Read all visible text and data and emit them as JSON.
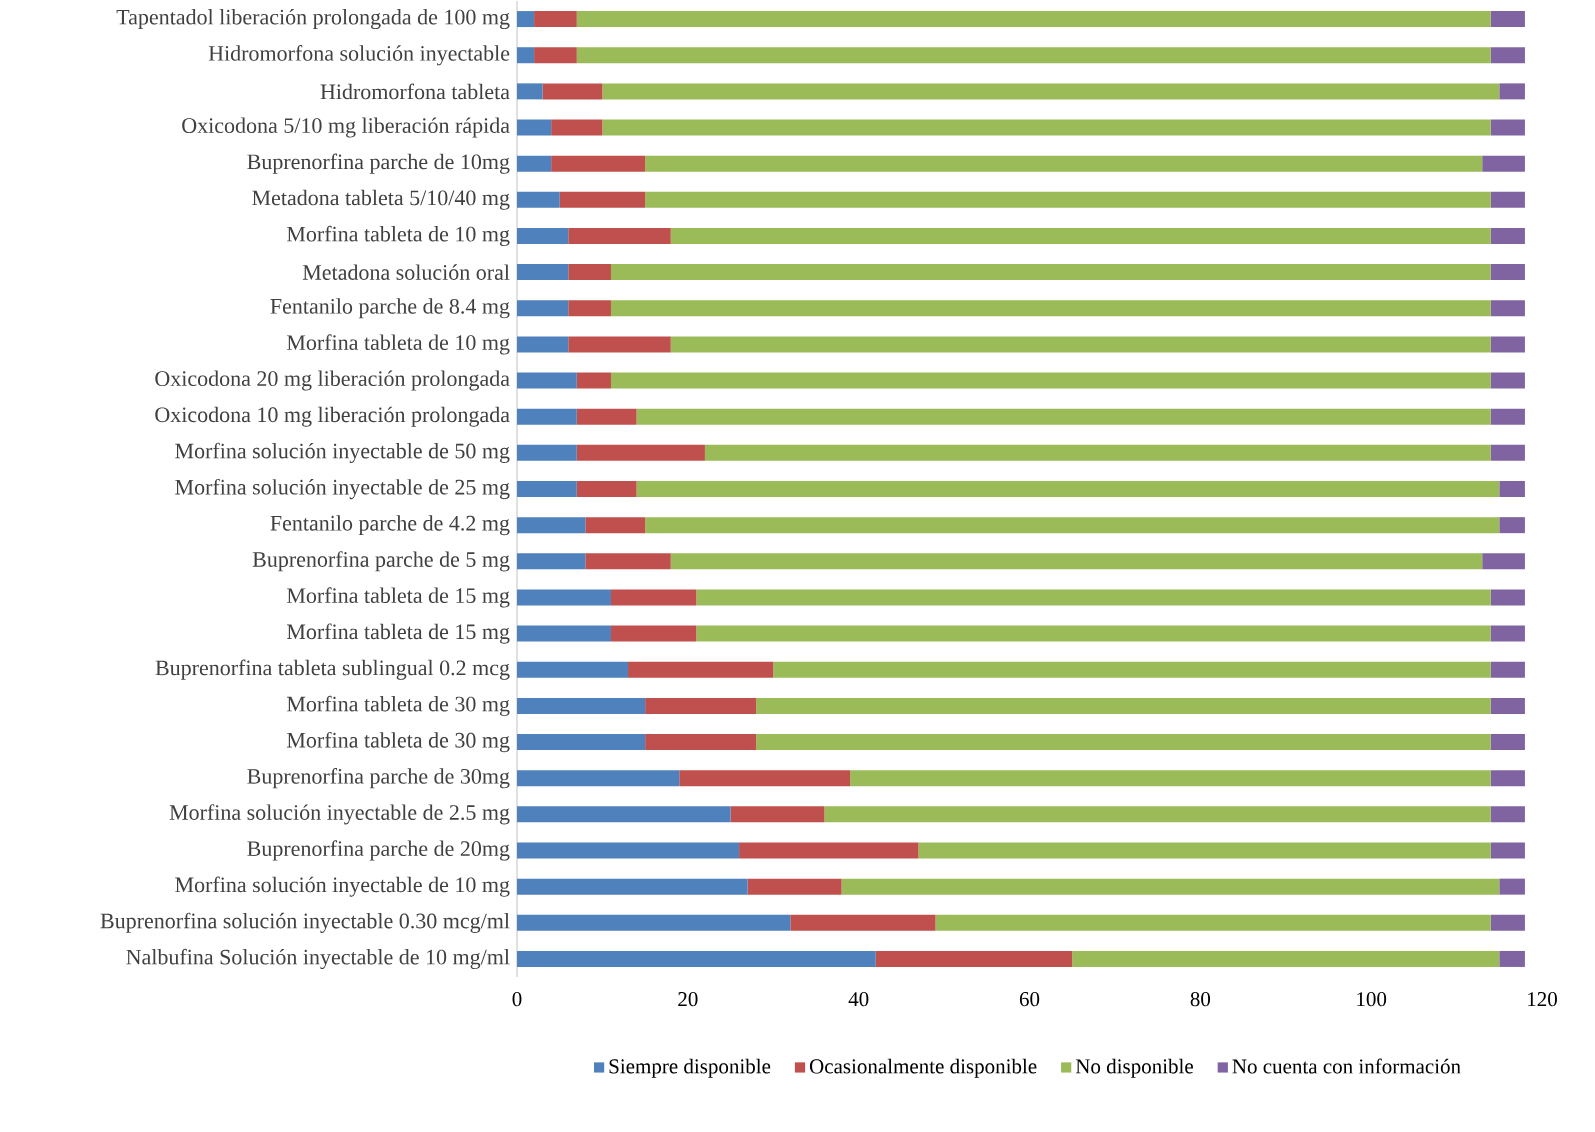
{
  "chart_data": {
    "type": "bar",
    "orientation": "horizontal",
    "stacked": true,
    "legend": "bottom",
    "categories": [
      "Tapentadol liberación prolongada de 100 mg",
      "Hidromorfona solución inyectable",
      "Hidromorfona tableta",
      "Oxicodona 5/10 mg liberación rápida",
      "Buprenorfina parche de 10mg",
      "Metadona tableta 5/10/40 mg",
      "Morfina tableta de 10 mg",
      "Metadona solución oral",
      "Fentanilo parche de 8.4 mg",
      "Morfina tableta de 10 mg",
      "Oxicodona 20 mg liberación prolongada",
      "Oxicodona 10 mg liberación prolongada",
      "Morfina solución inyectable de 50 mg",
      "Morfina solución inyectable de 25 mg",
      "Fentanilo parche de 4.2 mg",
      "Buprenorfina parche de 5 mg",
      "Morfina tableta de 15 mg",
      "Morfina tableta de 15 mg",
      "Buprenorfina tableta sublingual 0.2 mcg",
      "Morfina tableta de 30 mg",
      "Morfina tableta de 30 mg",
      "Buprenorfina parche de 30mg",
      "Morfina solución inyectable de 2.5 mg",
      "Buprenorfina parche de 20mg",
      "Morfina solución inyectable de 10 mg",
      "Buprenorfina solución inyectable 0.30 mcg/ml",
      "Nalbufina Solución inyectable de 10 mg/ml"
    ],
    "series": [
      {
        "name": "Siempre disponible",
        "color": "#4f81bd",
        "values": [
          2,
          2,
          3,
          4,
          4,
          5,
          6,
          6,
          6,
          6,
          7,
          7,
          7,
          7,
          8,
          8,
          11,
          11,
          13,
          15,
          15,
          19,
          25,
          26,
          27,
          32,
          42
        ]
      },
      {
        "name": "Ocasionalmente disponible",
        "color": "#c0504d",
        "values": [
          5,
          5,
          7,
          6,
          11,
          10,
          12,
          5,
          5,
          12,
          4,
          7,
          15,
          7,
          7,
          10,
          10,
          10,
          17,
          13,
          13,
          20,
          11,
          21,
          11,
          17,
          23
        ]
      },
      {
        "name": "No disponible",
        "color": "#9bbb59",
        "values": [
          107,
          107,
          105,
          104,
          98,
          99,
          96,
          103,
          103,
          96,
          103,
          100,
          92,
          101,
          100,
          95,
          93,
          93,
          84,
          86,
          86,
          75,
          78,
          67,
          77,
          65,
          50
        ]
      },
      {
        "name": "No cuenta con información",
        "color": "#8064a2",
        "values": [
          4,
          4,
          3,
          4,
          5,
          4,
          4,
          4,
          4,
          4,
          4,
          4,
          4,
          3,
          3,
          5,
          4,
          4,
          4,
          4,
          4,
          4,
          4,
          4,
          3,
          4,
          3
        ]
      }
    ],
    "xlim": [
      0,
      120
    ],
    "xticks": [
      0,
      20,
      40,
      60,
      80,
      100,
      120
    ]
  }
}
